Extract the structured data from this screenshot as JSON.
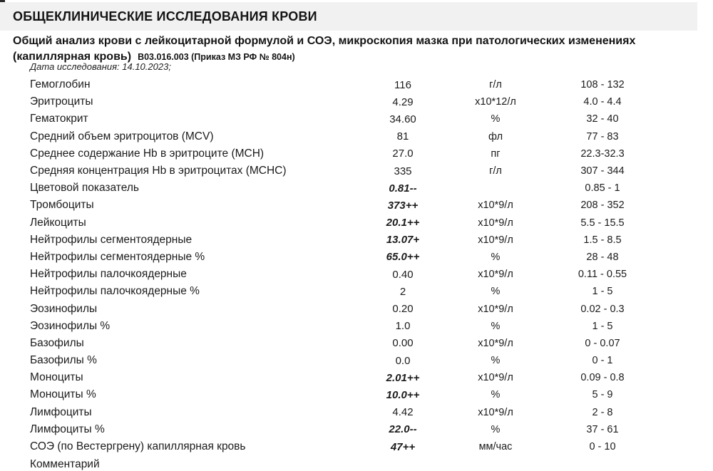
{
  "page": {
    "section_title": "ОБЩЕКЛИНИЧЕСКИЕ ИССЛЕДОВАНИЯ КРОВИ",
    "test_name_line1": "Общий анализ крови с лейкоцитарной формулой и СОЭ, микроскопия мазка при патологических изменениях",
    "test_name_line2": "(капиллярная кровь)",
    "test_code": "В03.016.003 (Приказ МЗ РФ № 804н)",
    "study_date": "Дата исследования: 14.10.2023;",
    "comment_label": "Комментарий"
  },
  "results": {
    "rows": [
      {
        "name": "Гемоглобин",
        "value": "116",
        "unit": "г/л",
        "range": "108 - 132",
        "flagged": false
      },
      {
        "name": "Эритроциты",
        "value": "4.29",
        "unit": "x10*12/л",
        "range": "4.0 - 4.4",
        "flagged": false
      },
      {
        "name": "Гематокрит",
        "value": "34.60",
        "unit": "%",
        "range": "32 - 40",
        "flagged": false
      },
      {
        "name": "Средний объем эритроцитов (MCV)",
        "value": "81",
        "unit": "фл",
        "range": "77 - 83",
        "flagged": false
      },
      {
        "name": "Среднее содержание Hb в эритроците (MCH)",
        "value": "27.0",
        "unit": "пг",
        "range": "22.3-32.3",
        "flagged": false
      },
      {
        "name": "Средняя концентрация Hb в эритроцитах (MCHC)",
        "value": "335",
        "unit": "г/л",
        "range": "307 - 344",
        "flagged": false
      },
      {
        "name": "Цветовой показатель",
        "value": "0.81--",
        "unit": "",
        "range": "0.85 - 1",
        "flagged": true
      },
      {
        "name": "Тромбоциты",
        "value": "373++",
        "unit": "x10*9/л",
        "range": "208 - 352",
        "flagged": true
      },
      {
        "name": "Лейкоциты",
        "value": "20.1++",
        "unit": "x10*9/л",
        "range": "5.5 - 15.5",
        "flagged": true
      },
      {
        "name": "Нейтрофилы сегментоядерные",
        "value": "13.07+",
        "unit": "x10*9/л",
        "range": "1.5 - 8.5",
        "flagged": true
      },
      {
        "name": "Нейтрофилы сегментоядерные %",
        "value": "65.0++",
        "unit": "%",
        "range": "28 - 48",
        "flagged": true
      },
      {
        "name": "Нейтрофилы палочкоядерные",
        "value": "0.40",
        "unit": "x10*9/л",
        "range": "0.11 - 0.55",
        "flagged": false
      },
      {
        "name": "Нейтрофилы палочкоядерные %",
        "value": "2",
        "unit": "%",
        "range": "1 - 5",
        "flagged": false
      },
      {
        "name": "Эозинофилы",
        "value": "0.20",
        "unit": "x10*9/л",
        "range": "0.02 - 0.3",
        "flagged": false
      },
      {
        "name": "Эозинофилы %",
        "value": "1.0",
        "unit": "%",
        "range": "1 - 5",
        "flagged": false
      },
      {
        "name": "Базофилы",
        "value": "0.00",
        "unit": "x10*9/л",
        "range": "0 - 0.07",
        "flagged": false
      },
      {
        "name": "Базофилы %",
        "value": "0.0",
        "unit": "%",
        "range": "0 - 1",
        "flagged": false
      },
      {
        "name": "Моноциты",
        "value": "2.01++",
        "unit": "x10*9/л",
        "range": "0.09 - 0.8",
        "flagged": true
      },
      {
        "name": "Моноциты %",
        "value": "10.0++",
        "unit": "%",
        "range": "5 - 9",
        "flagged": true
      },
      {
        "name": "Лимфоциты",
        "value": "4.42",
        "unit": "x10*9/л",
        "range": "2 - 8",
        "flagged": false
      },
      {
        "name": "Лимфоциты %",
        "value": "22.0--",
        "unit": "%",
        "range": "37 - 61",
        "flagged": true
      },
      {
        "name": "СОЭ (по Вестергрену) капиллярная кровь",
        "value": "47++",
        "unit": "мм/час",
        "range": "0 - 10",
        "flagged": true
      }
    ]
  },
  "colors": {
    "header_bar_bg": "#f1f1f1",
    "text": "#1b1b1b"
  }
}
